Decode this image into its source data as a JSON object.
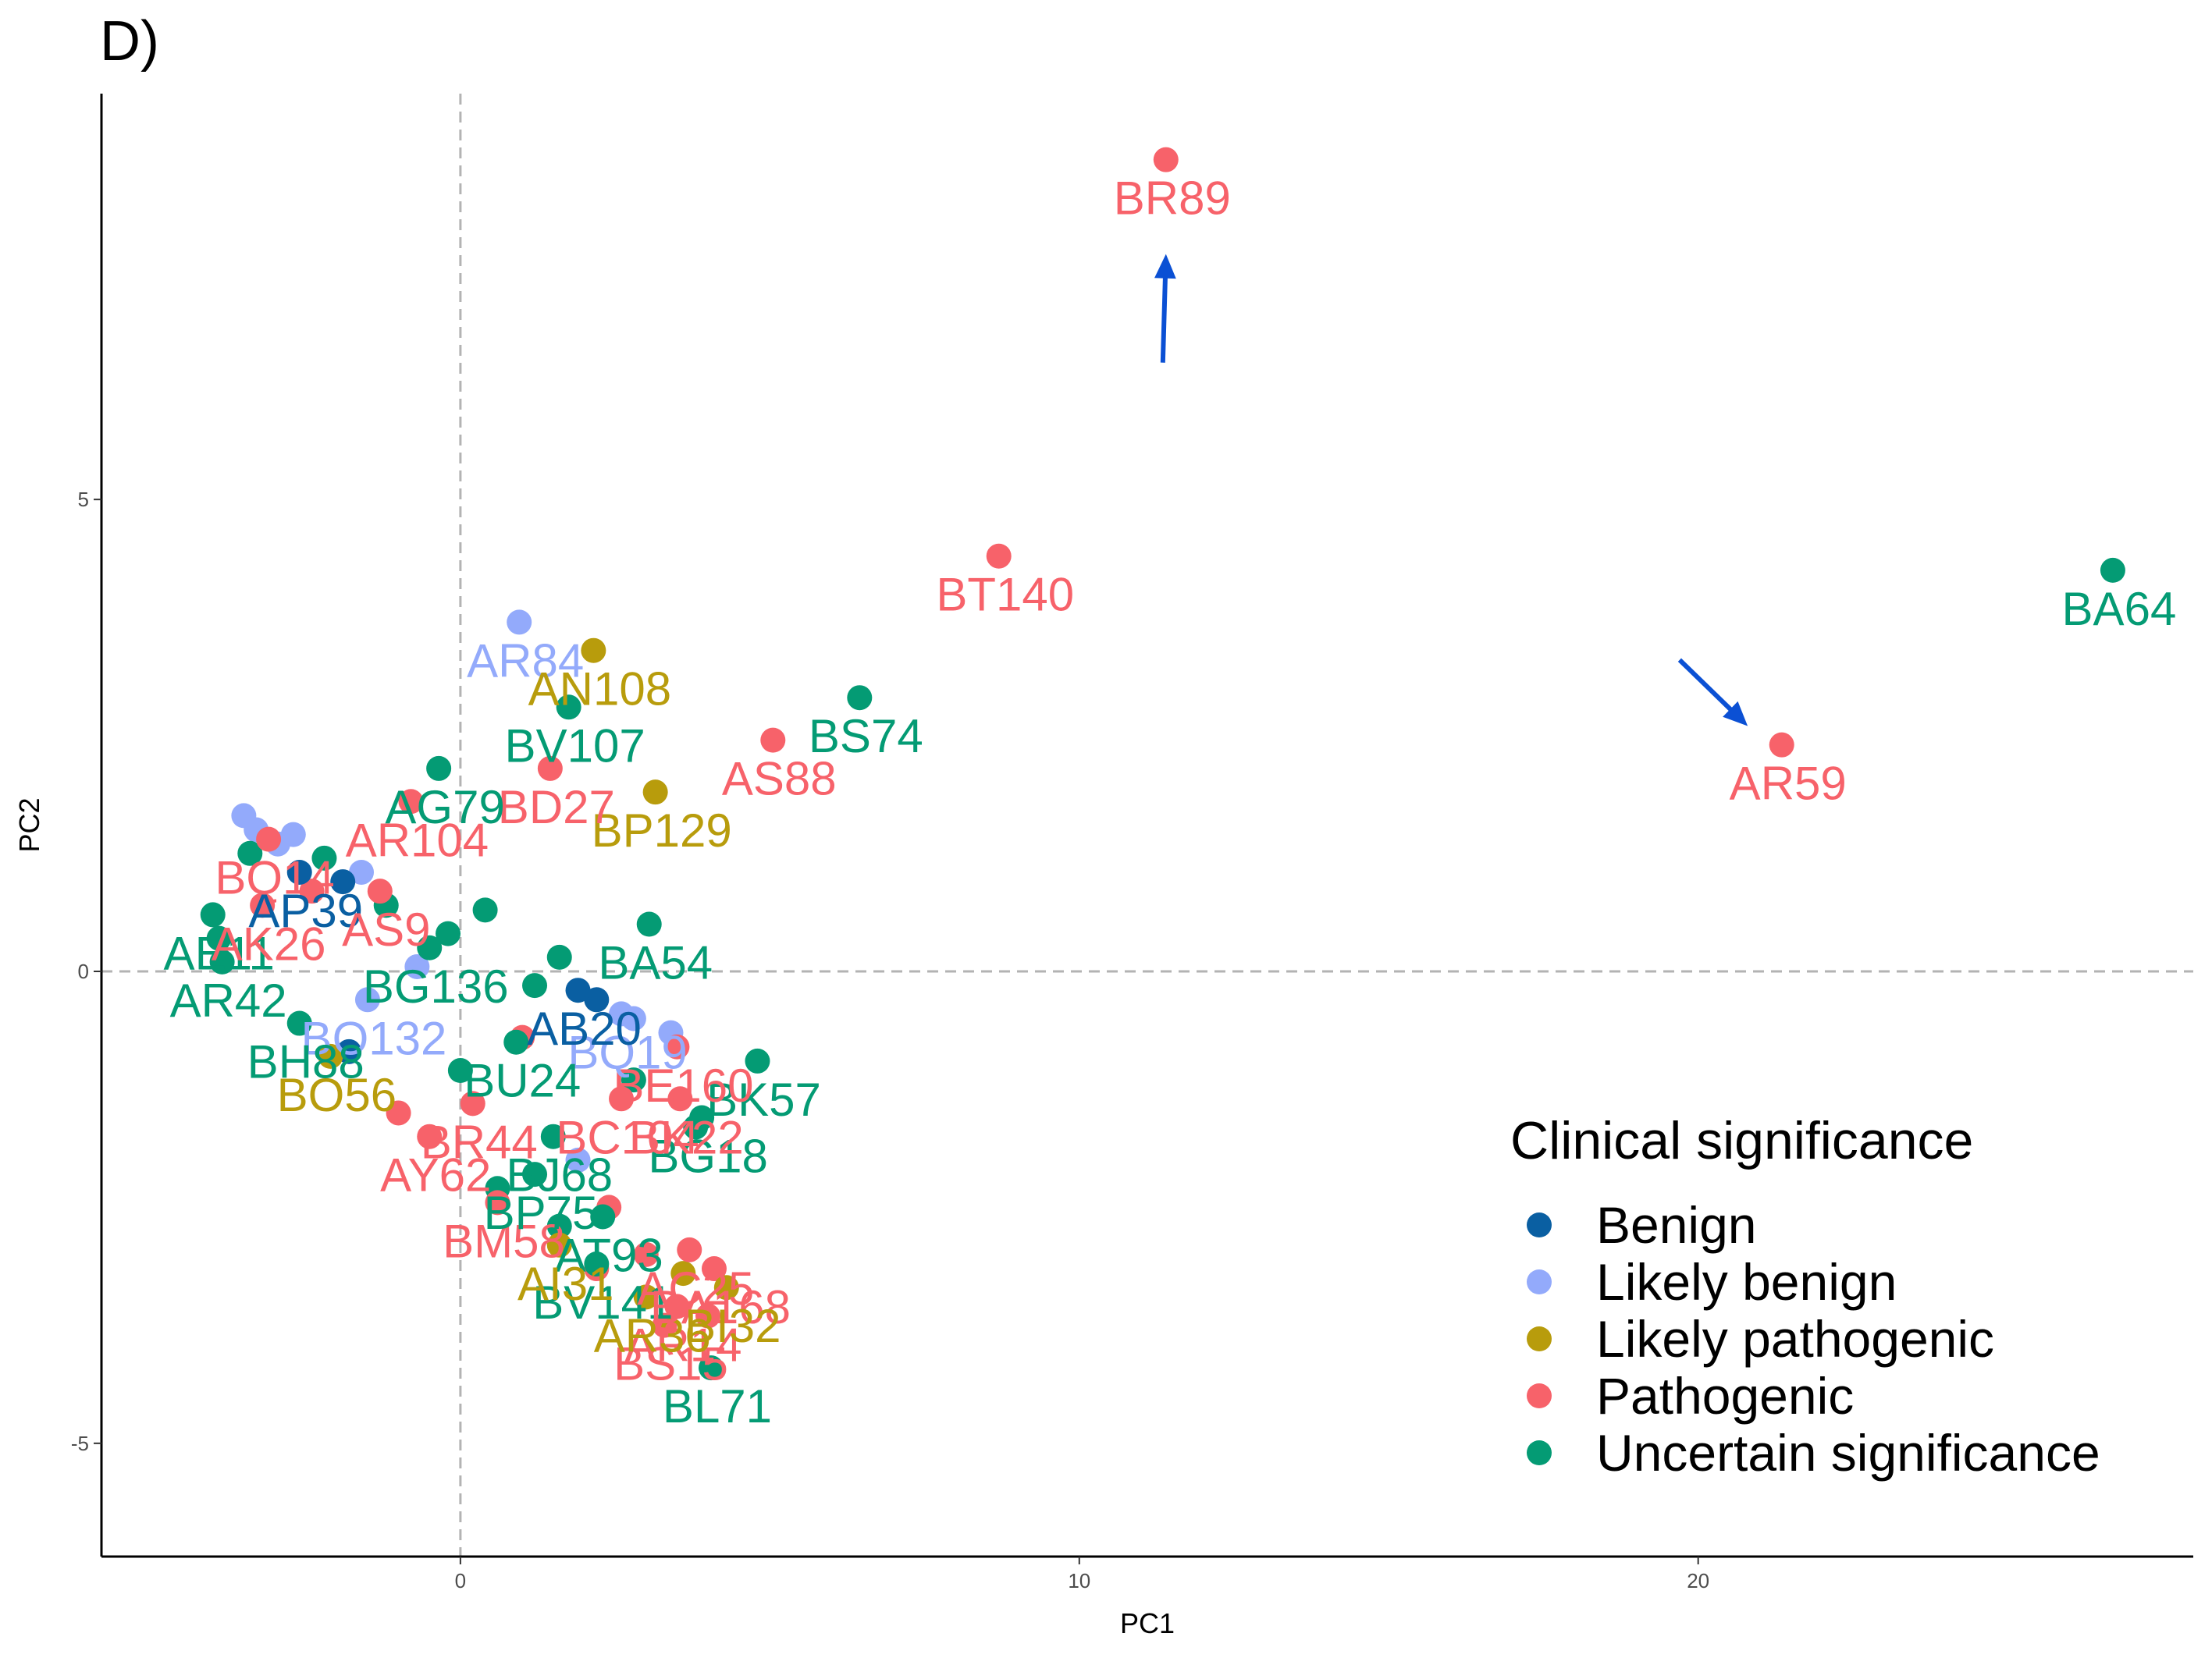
{
  "panel_label": "D)",
  "colors": {
    "Benign": "#0a5fa2",
    "Likely benign": "#93aafb",
    "Likely pathogenic": "#b89c0c",
    "Pathogenic": "#f7626a",
    "Uncertain significance": "#049b74",
    "arrow": "#0b50d4",
    "refline": "#b3b3b3"
  },
  "chart_data": {
    "type": "scatter",
    "xlabel": "PC1",
    "ylabel": "PC2",
    "xlim": [
      -5.8,
      28.0
    ],
    "ylim": [
      -6.2,
      9.3
    ],
    "xticks": [
      0,
      10,
      20
    ],
    "yticks": [
      -5,
      0,
      5
    ],
    "reference_lines": {
      "x": 0,
      "y": 0,
      "style": "dashed"
    },
    "grid": false,
    "legend": {
      "title": "Clinical significance",
      "position": "bottom-right",
      "entries": [
        "Benign",
        "Likely benign",
        "Likely pathogenic",
        "Pathogenic",
        "Uncertain significance"
      ]
    },
    "points": [
      {
        "label": "BR89",
        "x": 11.4,
        "y": 8.6,
        "class": "Pathogenic"
      },
      {
        "label": "BT140",
        "x": 8.7,
        "y": 4.4,
        "class": "Pathogenic"
      },
      {
        "label": "BA64",
        "x": 26.7,
        "y": 4.25,
        "class": "Uncertain significance"
      },
      {
        "label": "AR59",
        "x": 21.35,
        "y": 2.4,
        "class": "Pathogenic"
      },
      {
        "label": "BS74",
        "x": 6.45,
        "y": 2.9,
        "class": "Uncertain significance"
      },
      {
        "label": "AS88",
        "x": 5.05,
        "y": 2.45,
        "class": "Pathogenic"
      },
      {
        "label": "AR84",
        "x": 0.95,
        "y": 3.7,
        "class": "Likely benign"
      },
      {
        "label": "AN108",
        "x": 2.15,
        "y": 3.4,
        "class": "Likely pathogenic"
      },
      {
        "label": "BV107",
        "x": 1.75,
        "y": 2.8,
        "class": "Uncertain significance"
      },
      {
        "label": "BP129",
        "x": 3.15,
        "y": 1.9,
        "class": "Likely pathogenic"
      },
      {
        "label": "BD27",
        "x": 1.45,
        "y": 2.15,
        "class": "Pathogenic"
      },
      {
        "label": "AG79",
        "x": -0.35,
        "y": 2.15,
        "class": "Uncertain significance"
      },
      {
        "label": "AR104",
        "x": -0.8,
        "y": 1.8,
        "class": "Pathogenic"
      },
      {
        "label": "BA54",
        "x": 3.05,
        "y": 0.5,
        "class": "Uncertain significance"
      },
      {
        "label": "BK57",
        "x": 4.8,
        "y": -0.95,
        "class": "Uncertain significance"
      },
      {
        "label": "BL71",
        "x": 4.05,
        "y": -4.2,
        "class": "Uncertain significance"
      },
      {
        "label": "AR14",
        "x": 3.5,
        "y": -3.55,
        "class": "Pathogenic"
      },
      {
        "label": "BS15",
        "x": 3.3,
        "y": -3.75,
        "class": "Pathogenic"
      },
      {
        "label": "AR36",
        "x": 3.0,
        "y": -3.45,
        "class": "Likely pathogenic"
      },
      {
        "label": "BV141",
        "x": 2.2,
        "y": -3.1,
        "class": "Uncertain significance"
      },
      {
        "label": "BM58",
        "x": 0.6,
        "y": -2.45,
        "class": "Pathogenic"
      },
      {
        "label": "AY62",
        "x": -0.5,
        "y": -1.75,
        "class": "Pathogenic"
      },
      {
        "label": "BO132",
        "x": -1.5,
        "y": -0.3,
        "class": "Likely benign"
      },
      {
        "label": "BQ14",
        "x": -3.1,
        "y": 1.4,
        "class": "Pathogenic"
      },
      {
        "label": "AR42",
        "x": -3.85,
        "y": 0.1,
        "class": "Uncertain significance"
      },
      {
        "label": "BG136",
        "x": -0.5,
        "y": 0.25,
        "class": "Uncertain significance"
      },
      {
        "label": "BE160",
        "x": 3.5,
        "y": -0.8,
        "class": "Pathogenic"
      },
      {
        "label": "BG18",
        "x": 3.9,
        "y": -1.55,
        "class": "Uncertain significance"
      },
      {
        "label": "BK22",
        "x": 3.55,
        "y": -1.35,
        "class": "Pathogenic"
      },
      {
        "label": "BQ19",
        "x": 2.6,
        "y": -0.45,
        "class": "Likely benign"
      },
      {
        "label": "AB20",
        "x": 1.9,
        "y": -0.2,
        "class": "Benign"
      },
      {
        "label": "BA168",
        "x": 4.1,
        "y": -3.15,
        "class": "Pathogenic"
      },
      {
        "label": "AC25",
        "x": 3.7,
        "y": -2.95,
        "class": "Pathogenic"
      },
      {
        "label": "BI32",
        "x": 4.3,
        "y": -3.35,
        "class": "Likely pathogenic"
      },
      {
        "label": "BO56",
        "x": -2.1,
        "y": -0.9,
        "class": "Likely pathogenic"
      },
      {
        "label": "BR44",
        "x": 0.2,
        "y": -1.4,
        "class": "Pathogenic"
      },
      {
        "label": "BU24",
        "x": 0.9,
        "y": -0.75,
        "class": "Uncertain significance"
      },
      {
        "label": "AP39",
        "x": -2.6,
        "y": 1.05,
        "class": "Benign"
      },
      {
        "label": "AE11",
        "x": -4.0,
        "y": 0.6,
        "class": "Uncertain significance"
      },
      {
        "label": "AK26",
        "x": -3.2,
        "y": 0.7,
        "class": "Pathogenic"
      },
      {
        "label": "BH88",
        "x": -2.6,
        "y": -0.55,
        "class": "Uncertain significance"
      },
      {
        "label": "AS9",
        "x": -1.3,
        "y": 0.85,
        "class": "Pathogenic"
      },
      {
        "label": "BP75",
        "x": 1.2,
        "y": -2.15,
        "class": "Uncertain significance"
      },
      {
        "label": "AT93",
        "x": 2.3,
        "y": -2.6,
        "class": "Uncertain significance"
      },
      {
        "label": "AI31",
        "x": 1.6,
        "y": -2.9,
        "class": "Likely pathogenic"
      },
      {
        "label": "BC104",
        "x": 2.6,
        "y": -1.35,
        "class": "Pathogenic"
      },
      {
        "label": "BJ68",
        "x": 1.5,
        "y": -1.75,
        "class": "Uncertain significance"
      }
    ],
    "unlabeled_points": [
      {
        "x": -3.5,
        "y": 1.65,
        "class": "Likely benign"
      },
      {
        "x": -3.3,
        "y": 1.5,
        "class": "Likely benign"
      },
      {
        "x": -2.7,
        "y": 1.45,
        "class": "Likely benign"
      },
      {
        "x": -2.95,
        "y": 1.35,
        "class": "Likely benign"
      },
      {
        "x": -3.4,
        "y": 1.25,
        "class": "Uncertain significance"
      },
      {
        "x": -2.2,
        "y": 1.2,
        "class": "Uncertain significance"
      },
      {
        "x": -1.6,
        "y": 1.05,
        "class": "Likely benign"
      },
      {
        "x": -1.9,
        "y": 0.95,
        "class": "Benign"
      },
      {
        "x": -2.4,
        "y": 0.85,
        "class": "Pathogenic"
      },
      {
        "x": -1.2,
        "y": 0.7,
        "class": "Uncertain significance"
      },
      {
        "x": 0.4,
        "y": 0.65,
        "class": "Uncertain significance"
      },
      {
        "x": -0.2,
        "y": 0.4,
        "class": "Uncertain significance"
      },
      {
        "x": -3.9,
        "y": 0.35,
        "class": "Uncertain significance"
      },
      {
        "x": 1.6,
        "y": 0.15,
        "class": "Uncertain significance"
      },
      {
        "x": -0.7,
        "y": 0.05,
        "class": "Likely benign"
      },
      {
        "x": 1.2,
        "y": -0.15,
        "class": "Uncertain significance"
      },
      {
        "x": 2.2,
        "y": -0.3,
        "class": "Benign"
      },
      {
        "x": 2.8,
        "y": -0.5,
        "class": "Likely benign"
      },
      {
        "x": 3.4,
        "y": -0.65,
        "class": "Likely benign"
      },
      {
        "x": 1.0,
        "y": -0.7,
        "class": "Pathogenic"
      },
      {
        "x": -1.8,
        "y": -0.85,
        "class": "Benign"
      },
      {
        "x": 2.8,
        "y": -1.15,
        "class": "Uncertain significance"
      },
      {
        "x": 0.0,
        "y": -1.05,
        "class": "Uncertain significance"
      },
      {
        "x": 3.8,
        "y": -1.65,
        "class": "Uncertain significance"
      },
      {
        "x": -1.0,
        "y": -1.5,
        "class": "Pathogenic"
      },
      {
        "x": 1.9,
        "y": -2.0,
        "class": "Likely benign"
      },
      {
        "x": 0.6,
        "y": -2.3,
        "class": "Uncertain significance"
      },
      {
        "x": 2.4,
        "y": -2.5,
        "class": "Pathogenic"
      },
      {
        "x": 1.6,
        "y": -2.7,
        "class": "Uncertain significance"
      },
      {
        "x": 2.2,
        "y": -3.15,
        "class": "Pathogenic"
      },
      {
        "x": 3.0,
        "y": -3.0,
        "class": "Pathogenic"
      },
      {
        "x": 3.6,
        "y": -3.2,
        "class": "Likely pathogenic"
      },
      {
        "x": 4.0,
        "y": -3.65,
        "class": "Pathogenic"
      }
    ],
    "arrows": [
      {
        "from": [
          11.35,
          6.45
        ],
        "to": [
          11.4,
          7.6
        ]
      },
      {
        "from": [
          19.7,
          3.3
        ],
        "to": [
          20.8,
          2.6
        ]
      }
    ]
  }
}
